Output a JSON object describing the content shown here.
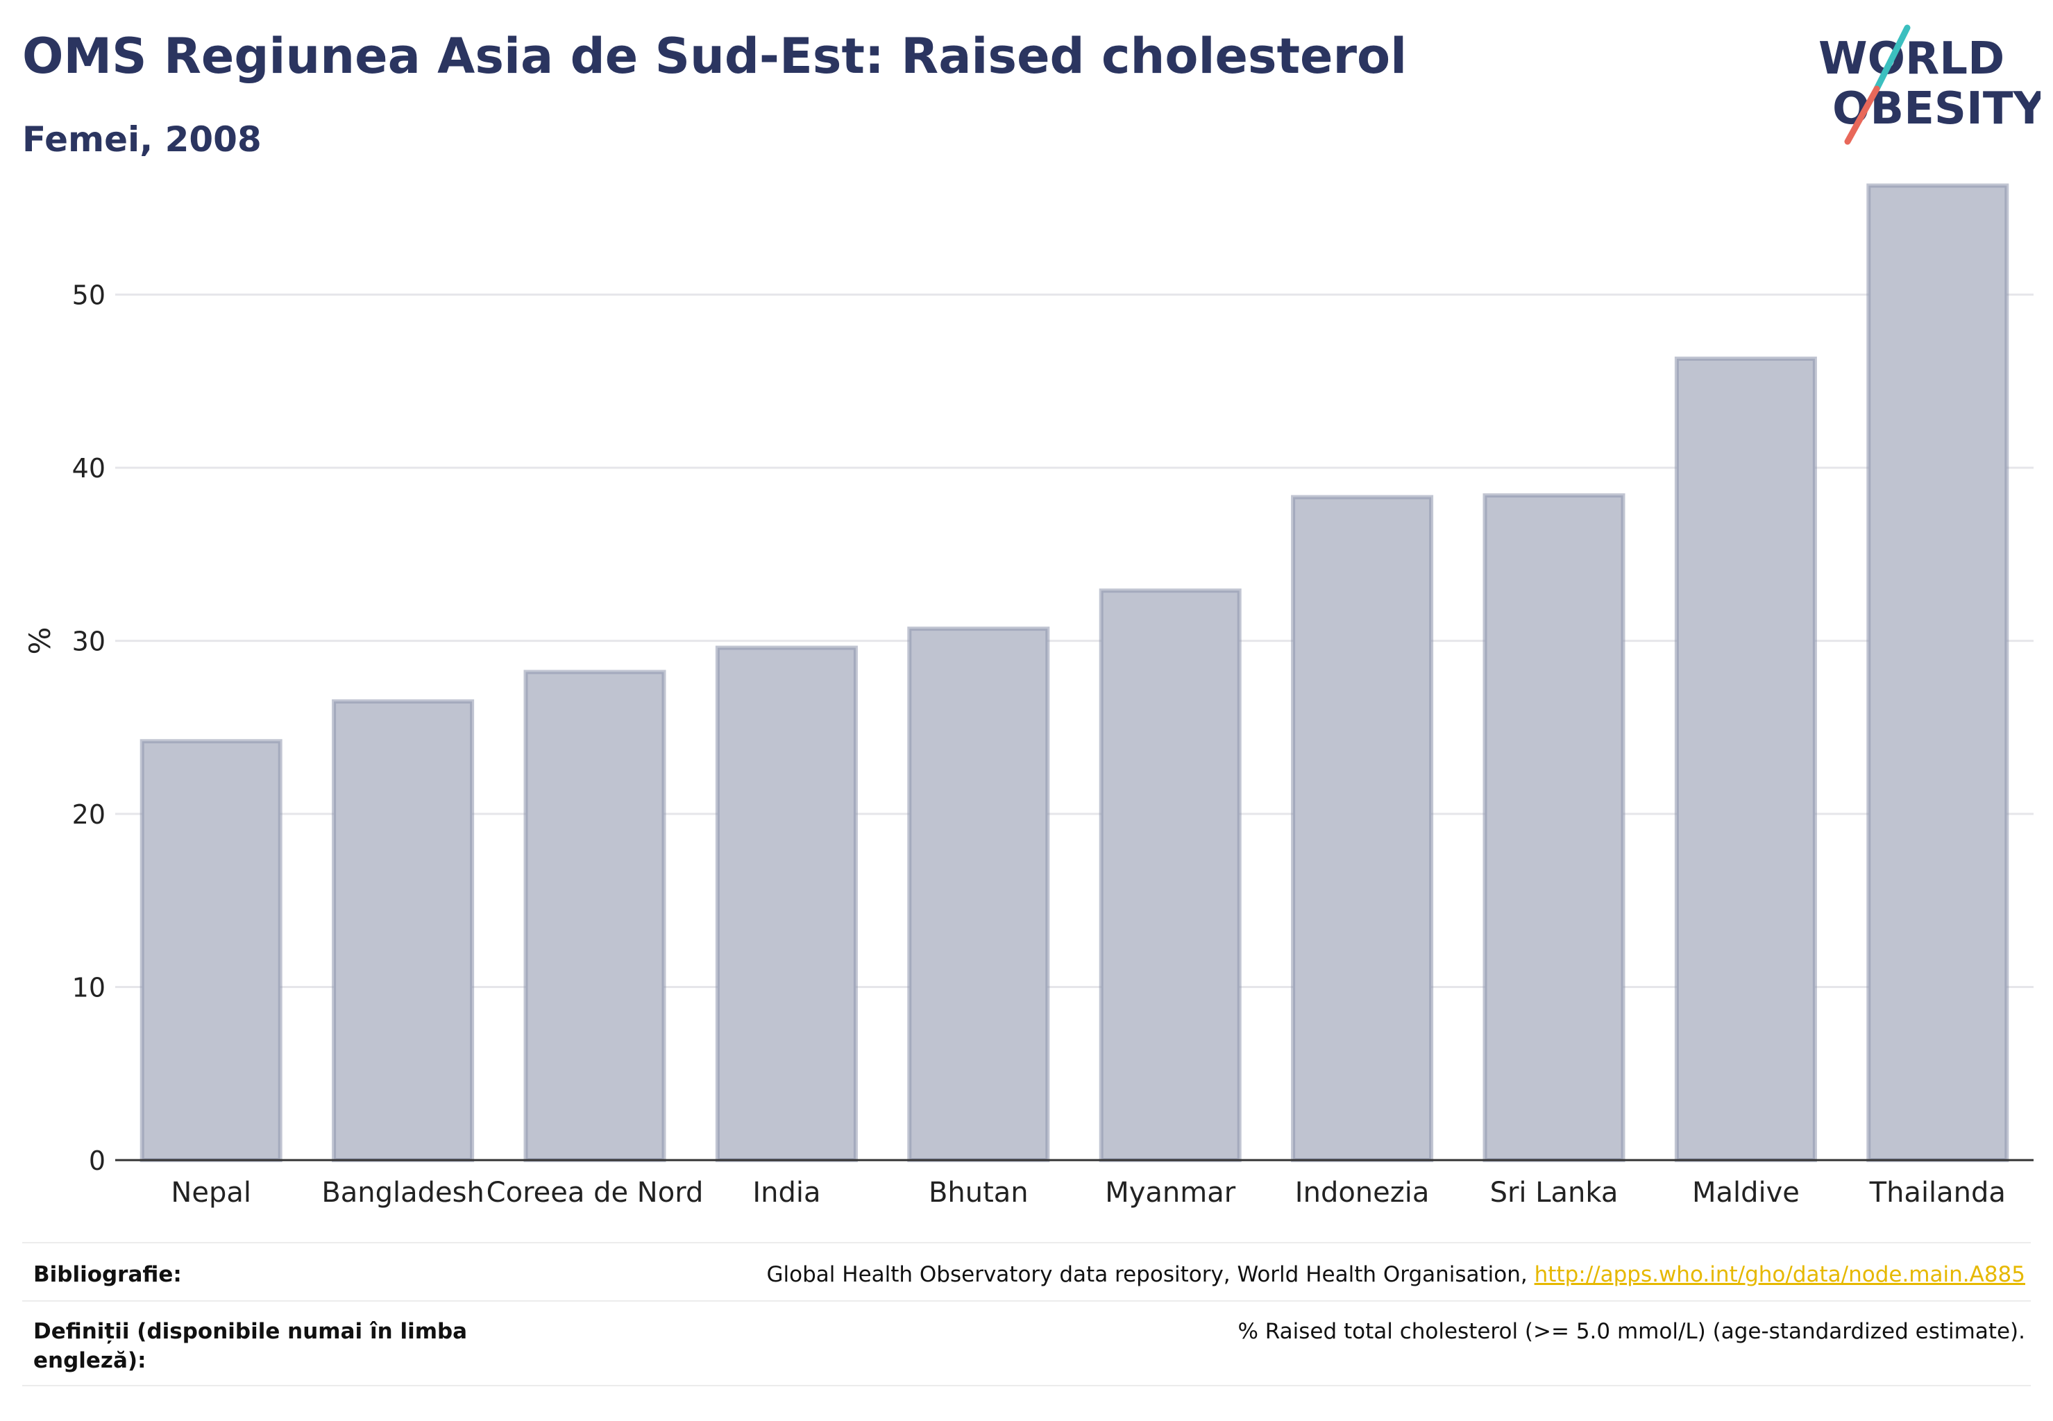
{
  "header": {
    "title": "OMS Regiunea Asia de Sud-Est: Raised cholesterol",
    "subtitle": "Femei, 2008"
  },
  "logo": {
    "line1": "WORLD",
    "line2": "OBESITY",
    "accent_teal": "#3bbfbf",
    "accent_red": "#e8685a"
  },
  "chart_data": {
    "type": "bar",
    "categories": [
      "Nepal",
      "Bangladesh",
      "Coreea de Nord",
      "India",
      "Bhutan",
      "Myanmar",
      "Indonezia",
      "Sri Lanka",
      "Maldive",
      "Thailanda"
    ],
    "values": [
      24.2,
      26.5,
      28.2,
      29.6,
      30.7,
      32.9,
      38.3,
      38.4,
      46.3,
      56.3
    ],
    "ylabel": "%",
    "ylim": [
      0,
      57
    ],
    "yticks": [
      0,
      10,
      20,
      30,
      40,
      50
    ],
    "grid": true,
    "bar_color": "#bfc3d0",
    "bar_edge_color": "#8e95ad"
  },
  "footer": {
    "source_label": "Bibliografie:",
    "source_text": "Global Health Observatory data repository, World Health Organisation, ",
    "source_link": "http://apps.who.int/gho/data/node.main.A885",
    "definition_label": "Definiții (disponibile numai în limba engleză):",
    "definition_text": "% Raised total cholesterol (>= 5.0 mmol/L) (age-standardized estimate)."
  }
}
